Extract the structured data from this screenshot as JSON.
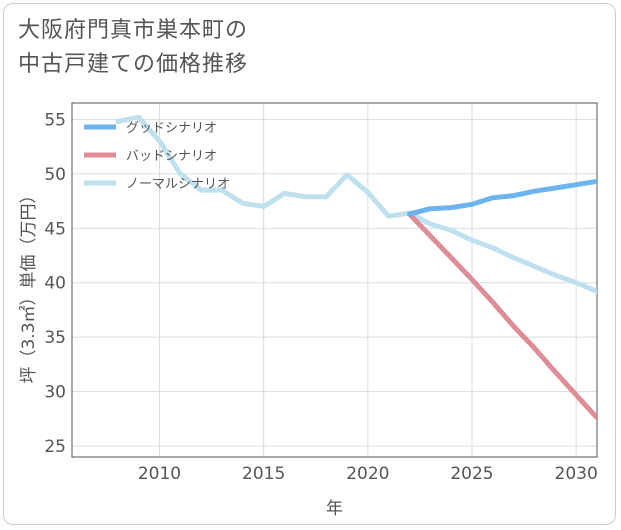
{
  "title_lines": [
    "大阪府門真市巣本町の",
    "中古戸建ての価格推移"
  ],
  "chart_data": {
    "type": "line",
    "xlabel": "年",
    "ylabel": "坪（3.3㎡）単価（万円）",
    "xlim": [
      2005.8,
      2031
    ],
    "ylim": [
      24,
      56.5
    ],
    "xticks": [
      2010,
      2015,
      2020,
      2025,
      2030
    ],
    "yticks": [
      25,
      30,
      35,
      40,
      45,
      50,
      55
    ],
    "grid": true,
    "legend_position": "top-left",
    "series": [
      {
        "name": "グッドシナリオ",
        "color": "#6cb4f0",
        "x": [
          2022,
          2023,
          2024,
          2025,
          2026,
          2027,
          2028,
          2029,
          2030,
          2031
        ],
        "y": [
          46.3,
          46.8,
          46.9,
          47.2,
          47.8,
          48.0,
          48.4,
          48.7,
          49.0,
          49.3
        ]
      },
      {
        "name": "バッドシナリオ",
        "color": "#de8c95",
        "x": [
          2022,
          2023,
          2024,
          2025,
          2026,
          2027,
          2028,
          2029,
          2030,
          2031
        ],
        "y": [
          46.3,
          44.3,
          42.3,
          40.3,
          38.2,
          36.0,
          34.0,
          31.8,
          29.7,
          27.6
        ]
      },
      {
        "name": "ノーマルシナリオ",
        "color": "#bfe0ef",
        "x": [
          2008,
          2009,
          2010,
          2011,
          2012,
          2013,
          2014,
          2015,
          2016,
          2017,
          2018,
          2019,
          2020,
          2021,
          2022,
          2023,
          2024,
          2025,
          2026,
          2027,
          2028,
          2029,
          2030,
          2031
        ],
        "y": [
          54.8,
          55.2,
          53.0,
          50.0,
          48.5,
          48.5,
          47.3,
          47.0,
          48.2,
          47.9,
          47.9,
          49.9,
          48.3,
          46.1,
          46.4,
          45.4,
          44.8,
          43.9,
          43.2,
          42.3,
          41.5,
          40.7,
          40.0,
          39.2
        ]
      }
    ]
  }
}
